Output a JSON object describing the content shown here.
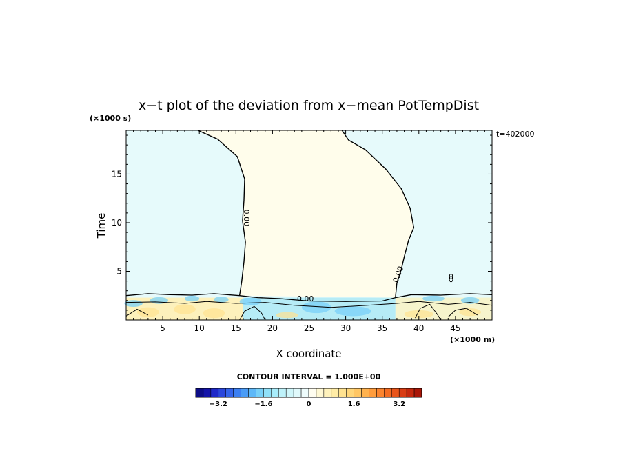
{
  "chart_data": {
    "type": "heatmap",
    "title": "x−t plot of the deviation from x−mean PotTempDist",
    "xlabel": "X coordinate",
    "ylabel": "Time",
    "x_unit": "(×1000 m)",
    "y_unit": "(×1000 s)",
    "corner_label": "t=402000",
    "xlim": [
      0,
      50
    ],
    "ylim": [
      0,
      19.5
    ],
    "x_ticks": [
      5,
      10,
      15,
      20,
      25,
      30,
      35,
      40,
      45
    ],
    "y_ticks": [
      5,
      10,
      15
    ],
    "contour_interval_label": "CONTOUR INTERVAL = 1.000E+00",
    "contour_labels": [
      {
        "text": "0.00",
        "x": 16.1,
        "y": 10.5
      },
      {
        "text": "0.00",
        "x": 37.5,
        "y": 4.6
      },
      {
        "text": "0.00",
        "x": 24.5,
        "y": 1.9
      },
      {
        "text": "0",
        "x": 44.4,
        "y": 4.2
      }
    ],
    "contour_left": [
      [
        9.8,
        19.5
      ],
      [
        12.5,
        18.6
      ],
      [
        15.2,
        16.8
      ],
      [
        16.2,
        14.5
      ],
      [
        16.1,
        12.3
      ],
      [
        15.9,
        10.2
      ],
      [
        16.3,
        8.0
      ],
      [
        16.1,
        6.0
      ],
      [
        15.8,
        4.0
      ],
      [
        15.5,
        2.5
      ]
    ],
    "contour_right": [
      [
        29.5,
        19.5
      ],
      [
        30.4,
        18.5
      ],
      [
        32.7,
        17.5
      ],
      [
        35.5,
        15.5
      ],
      [
        37.6,
        13.5
      ],
      [
        38.8,
        11.5
      ],
      [
        39.3,
        9.5
      ],
      [
        38.6,
        8.2
      ],
      [
        38.0,
        6.5
      ],
      [
        37.6,
        5.2
      ],
      [
        37.0,
        3.8
      ],
      [
        36.8,
        2.3
      ]
    ],
    "colorbar": {
      "range": [
        -4.0,
        4.0
      ],
      "tick_values": [
        -3.2,
        -1.6,
        0,
        1.6,
        3.2
      ],
      "tick_labels": [
        "−3.2",
        "−1.6",
        "0",
        "1.6",
        "3.2"
      ],
      "colors": [
        "#0d0d86",
        "#1414a8",
        "#1e28c8",
        "#2a46dc",
        "#3464ea",
        "#3c80f2",
        "#4a9cf6",
        "#5eb8f8",
        "#78d0f8",
        "#90e0f8",
        "#a8ecfa",
        "#bef2fa",
        "#d0f6fa",
        "#e0f9fb",
        "#eefcfc",
        "#fffdf0",
        "#fff8d4",
        "#fff2bc",
        "#ffeca6",
        "#ffe290",
        "#ffd67a",
        "#ffc664",
        "#ffb24e",
        "#ff9c3c",
        "#fb842e",
        "#f36c22",
        "#e8541a",
        "#d83c14",
        "#c4280e",
        "#a81608"
      ]
    },
    "regions": {
      "upper_left_color": "#e6fafb",
      "upper_middle_color": "#fffdeb",
      "upper_right_color": "#e6fafb",
      "bottom_left_color": "#fdf1bc",
      "bottom_middle_color": "#b6ecf6",
      "bottom_right_color": "#f6f4cc"
    }
  }
}
